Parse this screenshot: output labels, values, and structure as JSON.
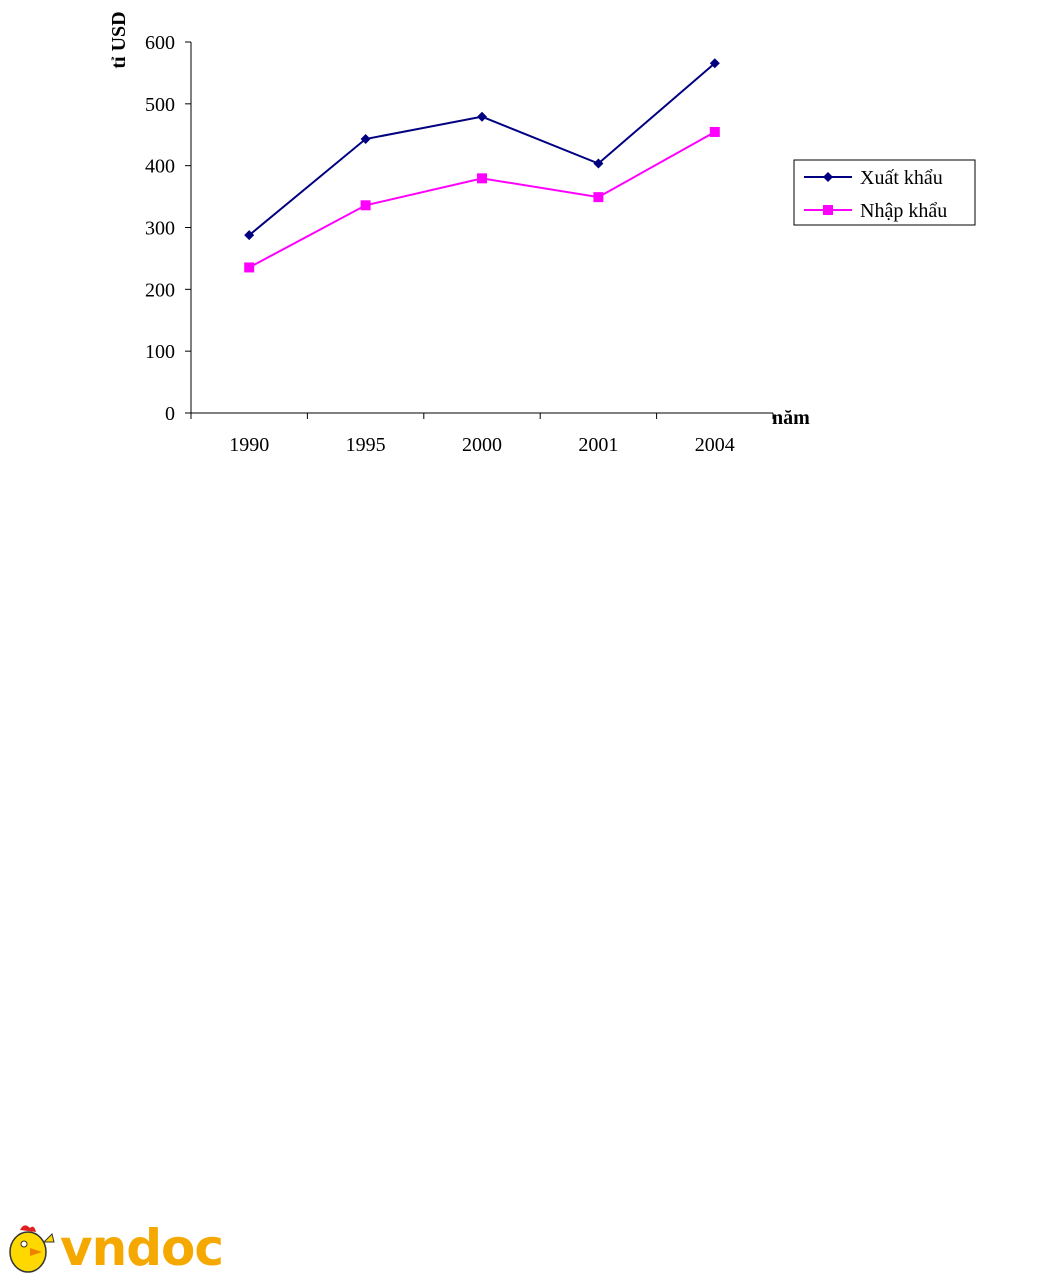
{
  "chart_data": {
    "type": "line",
    "title": "",
    "xlabel": "năm",
    "ylabel": "tỉ USD",
    "categories": [
      "1990",
      "1995",
      "2000",
      "2001",
      "2004"
    ],
    "ylim": [
      0,
      600
    ],
    "yticks": [
      0,
      100,
      200,
      300,
      400,
      500,
      600
    ],
    "grid": false,
    "legend_position": "right",
    "series": [
      {
        "name": "Xuất khẩu",
        "color": "#000080",
        "marker": "diamond",
        "values": [
          287.6,
          443.1,
          479.2,
          403.5,
          565.7
        ]
      },
      {
        "name": "Nhập khẩu",
        "color": "#ff00ff",
        "marker": "square",
        "values": [
          235.4,
          335.9,
          379.5,
          349.1,
          454.5
        ]
      }
    ]
  },
  "footer": {
    "logo_text": "vndoc"
  }
}
